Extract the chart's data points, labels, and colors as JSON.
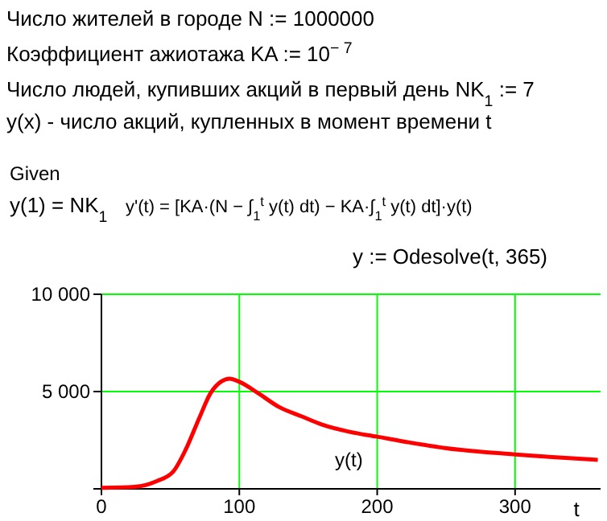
{
  "chart_data": {
    "type": "line",
    "annotations": [
      "Число жителей в городе    N := 1000000",
      "Коэффициент ажиотажа    KA := 10$^{− 7}$",
      "Число людей, купивших акций в первый день    NK$_{1}$ := 7",
      "y(x) - число акций, купленных в момент времени t",
      "Given",
      "y(1) = NK$_{1}$",
      "y'(t) = [KA·(N − ∫$_{1}$$^{t}$ y(t) dt) − KA·∫$_{1}$$^{t}$ y(t) dt]·y(t)",
      "y := Odesolve(t, 365)"
    ],
    "xlabel": "t",
    "x": [
      0,
      24,
      40,
      52,
      61,
      71,
      79,
      87,
      93,
      100,
      114,
      129,
      145,
      160,
      180,
      200,
      222,
      249,
      276,
      300,
      327,
      360
    ],
    "series": [
      {
        "name": "y(t)",
        "color": "#ff0000",
        "values": [
          50,
          100,
          390,
          880,
          2000,
          3650,
          4900,
          5520,
          5660,
          5500,
          4900,
          4200,
          3730,
          3300,
          2930,
          2680,
          2400,
          2100,
          1900,
          1770,
          1630,
          1490
        ]
      }
    ],
    "xlim": [
      0,
      362
    ],
    "ylim": [
      0,
      10000
    ],
    "xticks": [
      0,
      100,
      200,
      300
    ],
    "yticks": [
      {
        "value": 0,
        "label": null
      },
      {
        "value": 5000,
        "label": "5 000"
      },
      {
        "value": 10000,
        "label": "10 000"
      }
    ],
    "grid": true,
    "legend": false
  }
}
